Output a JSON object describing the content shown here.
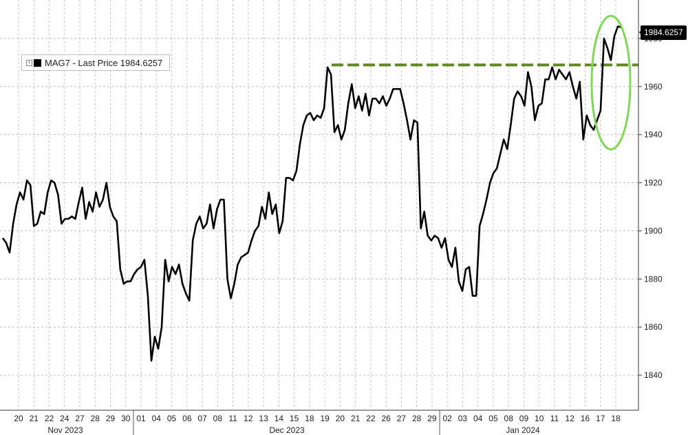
{
  "chart_data": {
    "type": "line",
    "title": "",
    "xlabel": "",
    "ylabel": "",
    "ylim": [
      1826,
      1996
    ],
    "yticks": [
      1840,
      1860,
      1880,
      1900,
      1920,
      1940,
      1960,
      1980
    ],
    "x_tick_labels": [
      "20",
      "21",
      "22",
      "24",
      "27",
      "28",
      "29",
      "30",
      "01",
      "04",
      "05",
      "06",
      "07",
      "08",
      "11",
      "12",
      "13",
      "14",
      "15",
      "18",
      "19",
      "20",
      "21",
      "22",
      "26",
      "27",
      "28",
      "29",
      "02",
      "03",
      "04",
      "05",
      "08",
      "09",
      "10",
      "11",
      "12",
      "16",
      "17",
      "18"
    ],
    "month_labels": [
      "Nov 2023",
      "Dec 2023",
      "Jan 2024"
    ],
    "grid": true,
    "legend_position": "top-left",
    "series": [
      {
        "name": "MAG7 - Last Price 1984.6257",
        "color": "#000000",
        "values": [
          1897,
          1895,
          1891,
          1903,
          1911,
          1916,
          1913,
          1921,
          1919,
          1902,
          1903,
          1908,
          1907,
          1916,
          1921,
          1920,
          1915,
          1903,
          1905,
          1905,
          1906,
          1905,
          1912,
          1918,
          1905,
          1912,
          1908,
          1916,
          1910,
          1913,
          1920,
          1910,
          1906,
          1904,
          1884,
          1878,
          1879,
          1879,
          1882,
          1884,
          1885,
          1888,
          1873,
          1846,
          1856,
          1851,
          1860,
          1888,
          1879,
          1885,
          1882,
          1886,
          1878,
          1874,
          1871,
          1896,
          1903,
          1906,
          1901,
          1903,
          1911,
          1901,
          1909,
          1913,
          1913,
          1880,
          1872,
          1878,
          1886,
          1889,
          1890,
          1891,
          1896,
          1900,
          1902,
          1910,
          1905,
          1916,
          1907,
          1911,
          1899,
          1904,
          1922,
          1922,
          1921,
          1925,
          1936,
          1944,
          1948,
          1949,
          1946,
          1948,
          1947,
          1951,
          1968,
          1965,
          1941,
          1944,
          1938,
          1942,
          1953,
          1961,
          1951,
          1956,
          1950,
          1957,
          1948,
          1955,
          1955,
          1953,
          1956,
          1952,
          1955,
          1959,
          1959,
          1959,
          1953,
          1946,
          1938,
          1946,
          1945,
          1901,
          1908,
          1898,
          1896,
          1898,
          1897,
          1893,
          1897,
          1888,
          1885,
          1893,
          1879,
          1875,
          1884,
          1885,
          1873,
          1873,
          1902,
          1907,
          1913,
          1920,
          1924,
          1926,
          1932,
          1938,
          1934,
          1944,
          1955,
          1958,
          1956,
          1952,
          1966,
          1960,
          1946,
          1952,
          1953,
          1963,
          1963,
          1968,
          1963,
          1967,
          1965,
          1963,
          1966,
          1960,
          1955,
          1962,
          1938,
          1948,
          1944,
          1942,
          1946,
          1950,
          1980,
          1976,
          1971,
          1981,
          1985,
          1984.6257
        ]
      }
    ],
    "annotations": {
      "last_price_label": "1984.6257",
      "dashed_line_value": 1969,
      "dashed_line_color": "#5b8c15",
      "highlight_ellipse_color": "#7ed957"
    }
  },
  "legend": {
    "label": "MAG7 - Last Price 1984.6257",
    "expand_glyph": "+"
  },
  "last_badge": "1984.6257"
}
